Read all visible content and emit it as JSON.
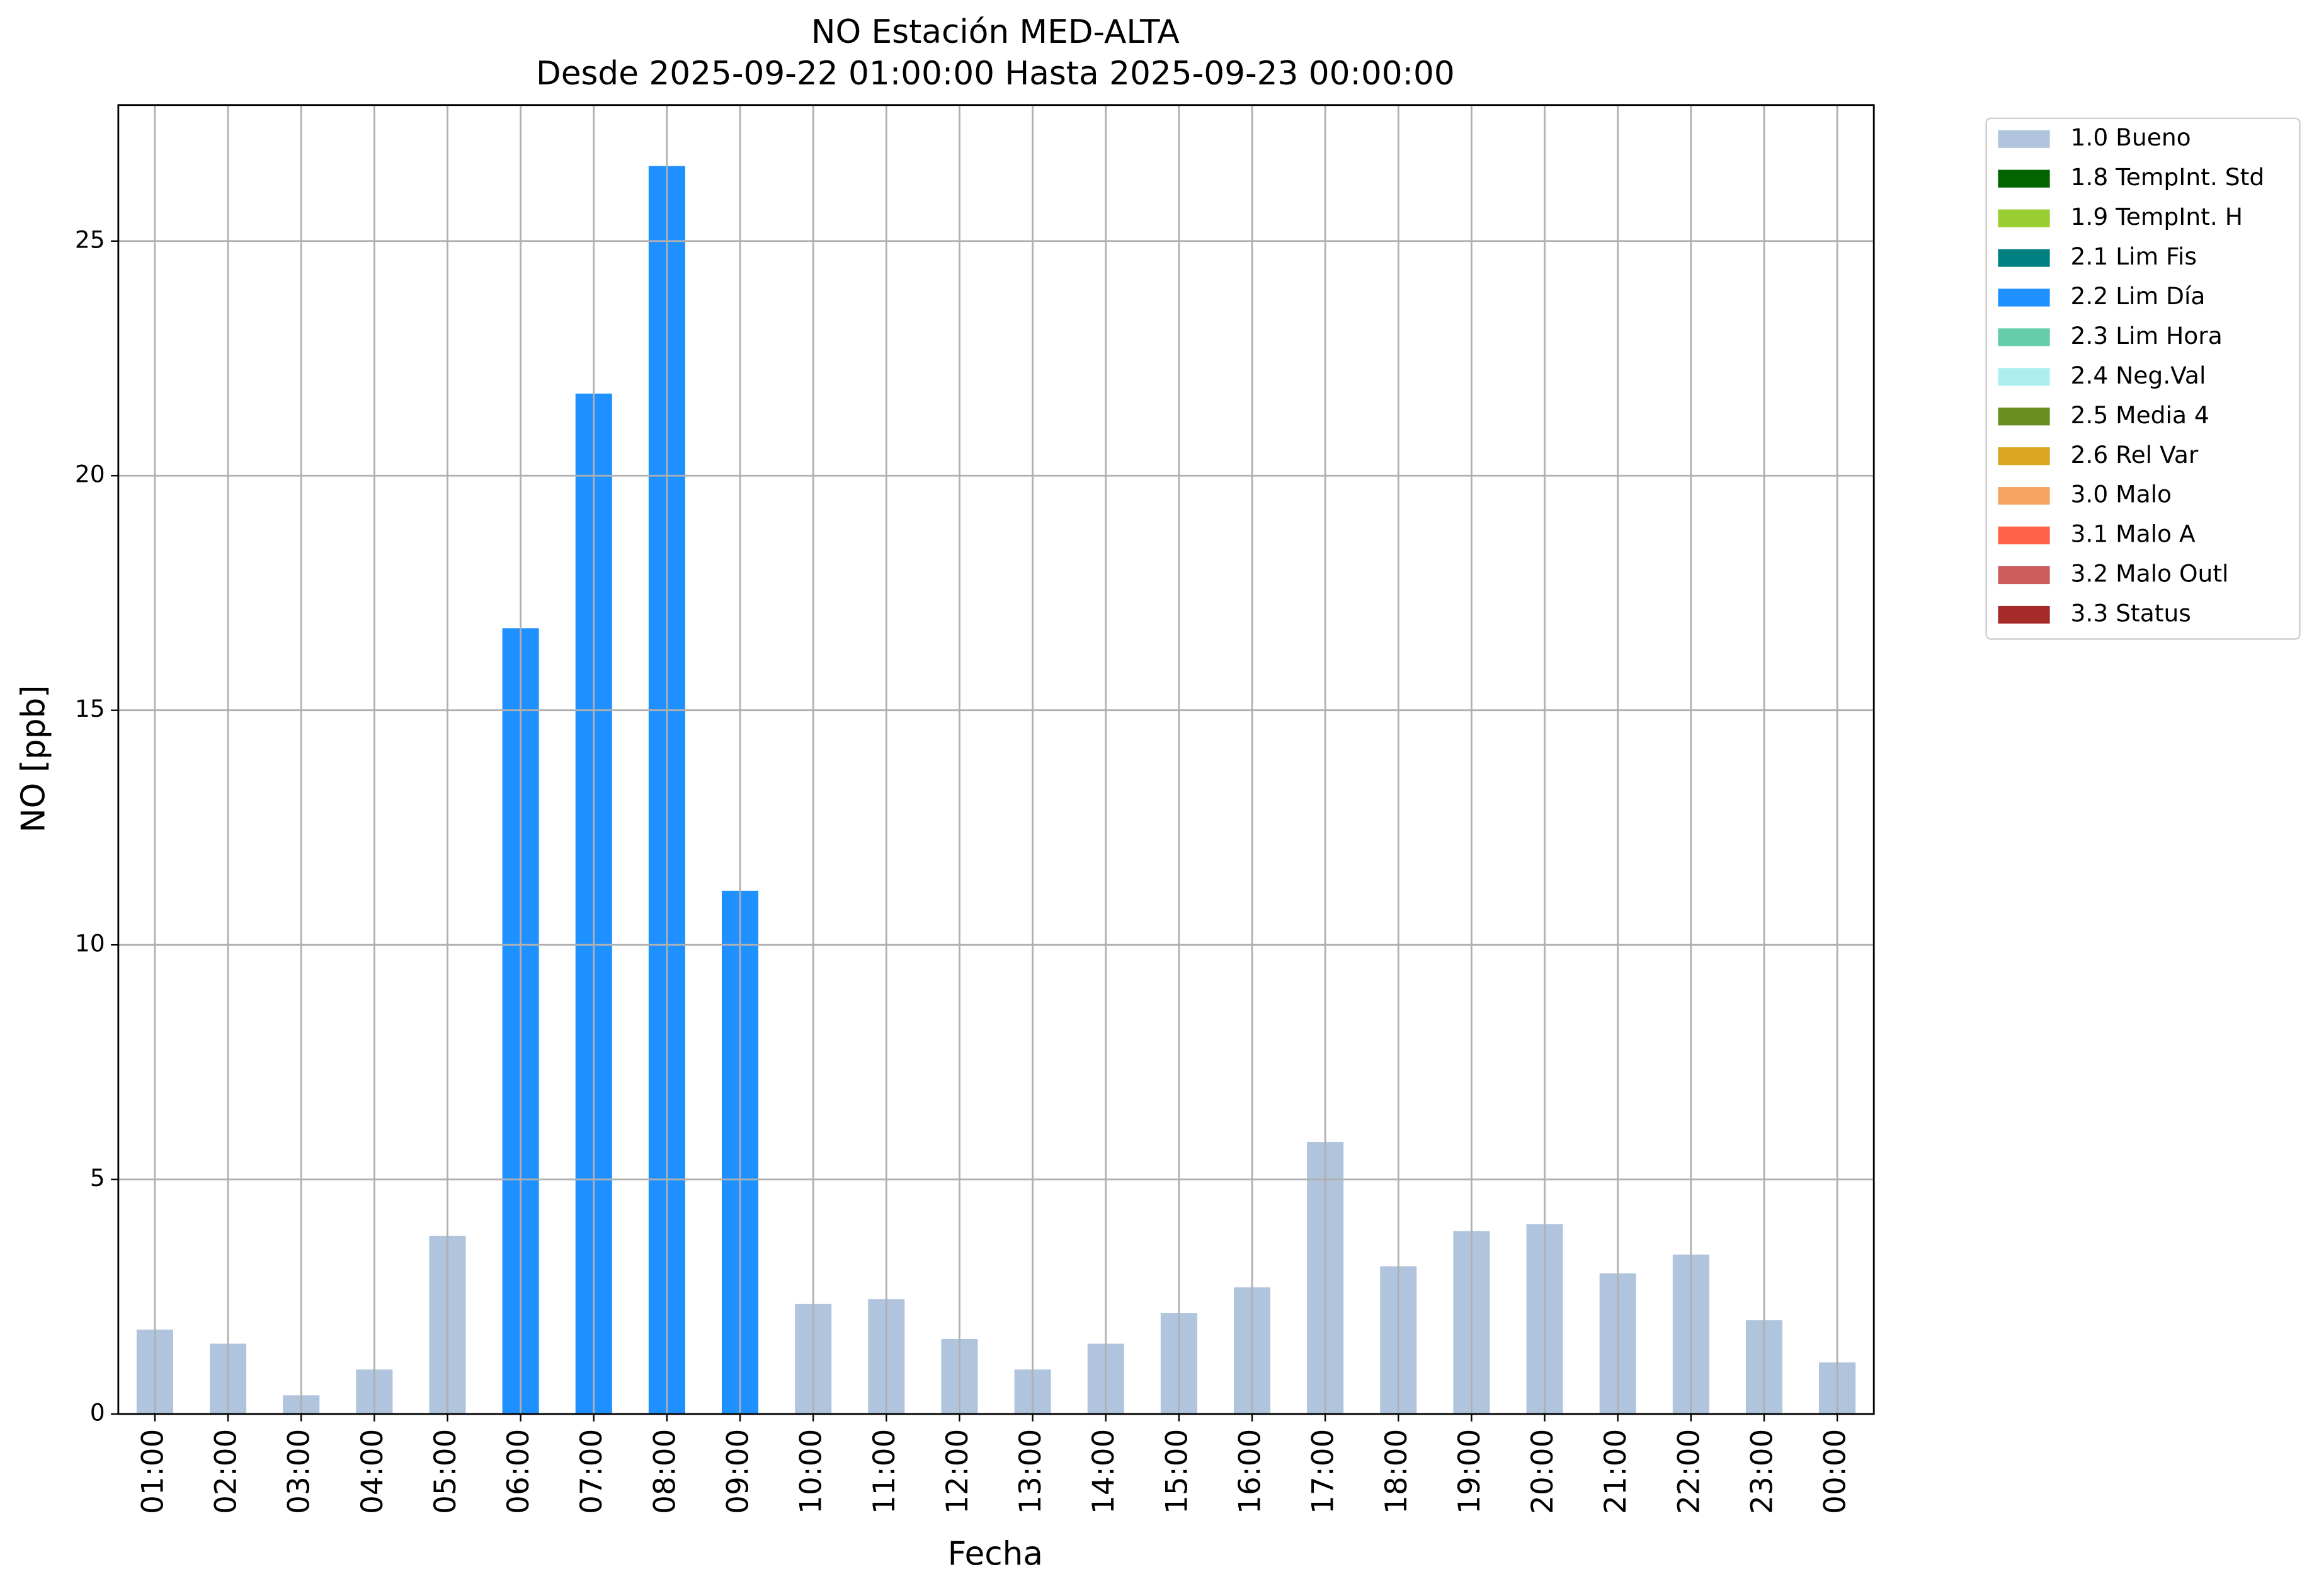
{
  "chart_data": {
    "type": "bar",
    "stacked": true,
    "title": "NO Estación MED-ALTA",
    "subtitle": "Desde 2025-09-22 01:00:00 Hasta 2025-09-23 00:00:00",
    "x_label": "Fecha",
    "y_label": "NO [ppb]",
    "categories": [
      "01:00",
      "02:00",
      "03:00",
      "04:00",
      "05:00",
      "06:00",
      "07:00",
      "08:00",
      "09:00",
      "10:00",
      "11:00",
      "12:00",
      "13:00",
      "14:00",
      "15:00",
      "16:00",
      "17:00",
      "18:00",
      "19:00",
      "20:00",
      "21:00",
      "22:00",
      "23:00",
      "00:00"
    ],
    "series": [
      {
        "name": "1.0 Bueno",
        "color": "#b0c4de",
        "values": [
          1.8,
          1.5,
          0.4,
          0.95,
          3.8,
          null,
          null,
          null,
          null,
          2.35,
          2.45,
          1.6,
          0.95,
          1.5,
          2.15,
          2.7,
          5.8,
          3.15,
          3.9,
          4.05,
          3.0,
          3.4,
          2.0,
          1.1
        ]
      },
      {
        "name": "1.8 TempInt. Std",
        "color": "#006400",
        "values": [
          null,
          null,
          null,
          null,
          null,
          null,
          null,
          null,
          null,
          null,
          null,
          null,
          null,
          null,
          null,
          null,
          null,
          null,
          null,
          null,
          null,
          null,
          null,
          null
        ]
      },
      {
        "name": "1.9 TempInt. H",
        "color": "#9acd32",
        "values": [
          null,
          null,
          null,
          null,
          null,
          null,
          null,
          null,
          null,
          null,
          null,
          null,
          null,
          null,
          null,
          null,
          null,
          null,
          null,
          null,
          null,
          null,
          null,
          null
        ]
      },
      {
        "name": "2.1 Lim Fis",
        "color": "#008080",
        "values": [
          null,
          null,
          null,
          null,
          null,
          null,
          null,
          null,
          null,
          null,
          null,
          null,
          null,
          null,
          null,
          null,
          null,
          null,
          null,
          null,
          null,
          null,
          null,
          null
        ]
      },
      {
        "name": "2.2 Lim Día",
        "color": "#1e90ff",
        "values": [
          null,
          null,
          null,
          null,
          null,
          16.75,
          21.75,
          26.6,
          11.15,
          null,
          null,
          null,
          null,
          null,
          null,
          null,
          null,
          null,
          null,
          null,
          null,
          null,
          null,
          null
        ]
      },
      {
        "name": "2.3 Lim Hora",
        "color": "#66cdaa",
        "values": [
          null,
          null,
          null,
          null,
          null,
          null,
          null,
          null,
          null,
          null,
          null,
          null,
          null,
          null,
          null,
          null,
          null,
          null,
          null,
          null,
          null,
          null,
          null,
          null
        ]
      },
      {
        "name": "2.4 Neg.Val",
        "color": "#afeeee",
        "values": [
          null,
          null,
          null,
          null,
          null,
          null,
          null,
          null,
          null,
          null,
          null,
          null,
          null,
          null,
          null,
          null,
          null,
          null,
          null,
          null,
          null,
          null,
          null,
          null
        ]
      },
      {
        "name": "2.5 Media 4",
        "color": "#6b8e23",
        "values": [
          null,
          null,
          null,
          null,
          null,
          null,
          null,
          null,
          null,
          null,
          null,
          null,
          null,
          null,
          null,
          null,
          null,
          null,
          null,
          null,
          null,
          null,
          null,
          null
        ]
      },
      {
        "name": "2.6 Rel Var",
        "color": "#daa520",
        "values": [
          null,
          null,
          null,
          null,
          null,
          null,
          null,
          null,
          null,
          null,
          null,
          null,
          null,
          null,
          null,
          null,
          null,
          null,
          null,
          null,
          null,
          null,
          null,
          null
        ]
      },
      {
        "name": "3.0 Malo",
        "color": "#f4a460",
        "values": [
          null,
          null,
          null,
          null,
          null,
          null,
          null,
          null,
          null,
          null,
          null,
          null,
          null,
          null,
          null,
          null,
          null,
          null,
          null,
          null,
          null,
          null,
          null,
          null
        ]
      },
      {
        "name": "3.1 Malo A",
        "color": "#ff6347",
        "values": [
          null,
          null,
          null,
          null,
          null,
          null,
          null,
          null,
          null,
          null,
          null,
          null,
          null,
          null,
          null,
          null,
          null,
          null,
          null,
          null,
          null,
          null,
          null,
          null
        ]
      },
      {
        "name": "3.2 Malo Outl",
        "color": "#cd5c5c",
        "values": [
          null,
          null,
          null,
          null,
          null,
          null,
          null,
          null,
          null,
          null,
          null,
          null,
          null,
          null,
          null,
          null,
          null,
          null,
          null,
          null,
          null,
          null,
          null,
          null
        ]
      },
      {
        "name": "3.3 Status",
        "color": "#a52a2a",
        "values": [
          null,
          null,
          null,
          null,
          null,
          null,
          null,
          null,
          null,
          null,
          null,
          null,
          null,
          null,
          null,
          null,
          null,
          null,
          null,
          null,
          null,
          null,
          null,
          null
        ]
      }
    ],
    "ylim": [
      0,
      27.9
    ],
    "yticks": [
      0,
      5,
      10,
      15,
      20,
      25
    ],
    "grid": true,
    "legend": "outside right"
  }
}
